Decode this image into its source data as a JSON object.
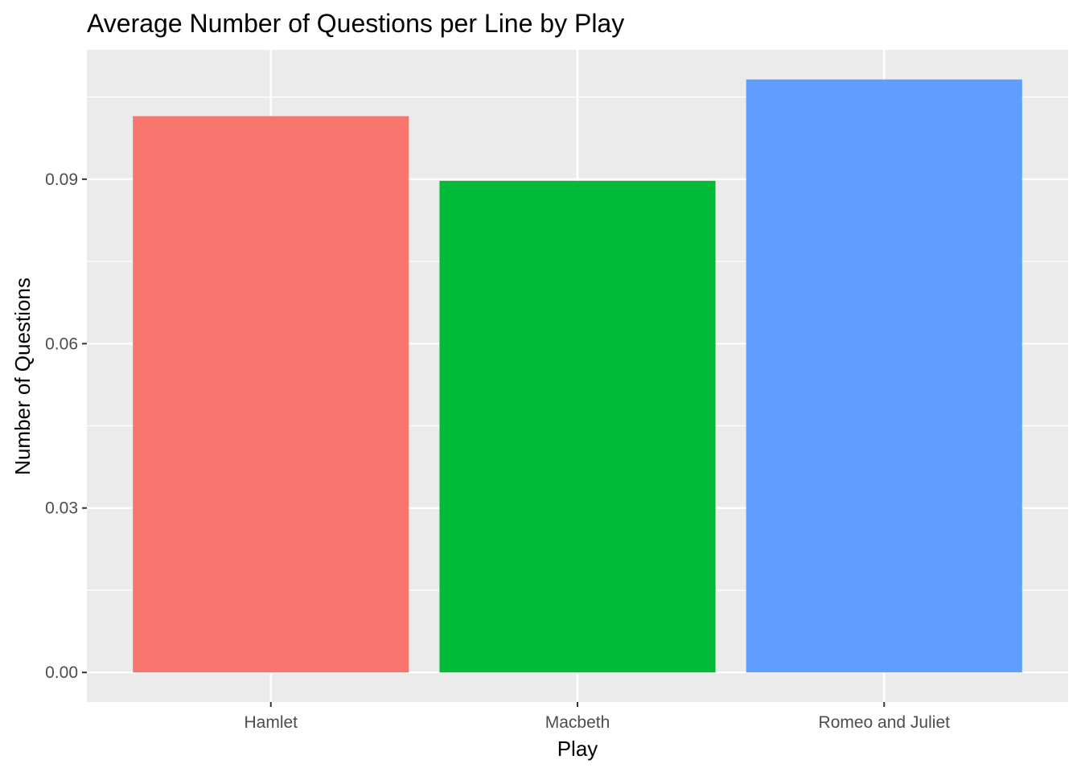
{
  "chart_data": {
    "type": "bar",
    "title": "Average Number of Questions per Line by Play",
    "xlabel": "Play",
    "ylabel": "Number of Questions",
    "categories": [
      "Hamlet",
      "Macbeth",
      "Romeo and Juliet"
    ],
    "values": [
      0.1015,
      0.0897,
      0.1082
    ],
    "colors": [
      "#F8766D",
      "#00BA38",
      "#619CFF"
    ],
    "ylim": [
      -0.0054,
      0.1136
    ],
    "yticks": [
      0.0,
      0.03,
      0.06,
      0.09
    ],
    "ytick_labels": [
      "0.00",
      "0.03",
      "0.06",
      "0.09"
    ],
    "grid": true,
    "legend": "none",
    "panel_background": "#EBEBEB",
    "gridline_color": "#FFFFFF"
  }
}
